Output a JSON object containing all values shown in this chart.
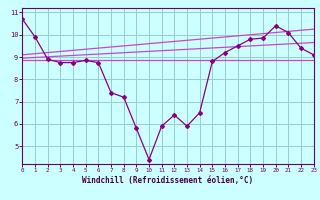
{
  "main_x": [
    0,
    1,
    2,
    3,
    4,
    5,
    6,
    7,
    8,
    9,
    10,
    11,
    12,
    13,
    14,
    15,
    16,
    17,
    18,
    19,
    20,
    21,
    22,
    23
  ],
  "main_y": [
    10.7,
    9.9,
    8.9,
    8.75,
    8.75,
    8.85,
    8.75,
    7.4,
    7.2,
    5.8,
    4.4,
    5.9,
    6.4,
    5.9,
    6.5,
    8.8,
    9.2,
    9.5,
    9.8,
    9.85,
    10.4,
    10.1,
    9.4,
    9.1
  ],
  "line1_x": [
    0,
    23
  ],
  "line1_y": [
    8.85,
    8.85
  ],
  "line2_x": [
    0,
    23
  ],
  "line2_y": [
    8.95,
    9.65
  ],
  "line3_x": [
    0,
    23
  ],
  "line3_y": [
    9.1,
    10.25
  ],
  "main_color": "#880088",
  "trend_color": "#cc44cc",
  "bg_color": "#ccffff",
  "grid_color": "#99cccc",
  "xlabel": "Windchill (Refroidissement éolien,°C)",
  "xlim": [
    0,
    23
  ],
  "ylim": [
    4.2,
    11.2
  ],
  "yticks": [
    5,
    6,
    7,
    8,
    9,
    10,
    11
  ],
  "xticks": [
    0,
    1,
    2,
    3,
    4,
    5,
    6,
    7,
    8,
    9,
    10,
    11,
    12,
    13,
    14,
    15,
    16,
    17,
    18,
    19,
    20,
    21,
    22,
    23
  ]
}
